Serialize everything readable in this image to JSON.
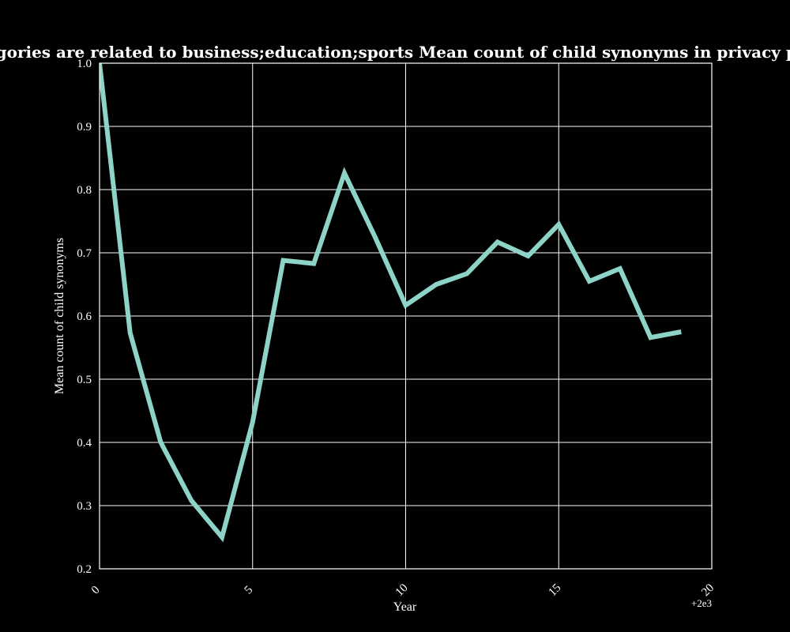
{
  "chart_data": {
    "type": "line",
    "title": "en categories are related to business;education;sports Mean count of child synonyms in privacy policies by",
    "xlabel": "Year",
    "ylabel": "Mean count of child synonyms",
    "x_offset_label": "+2e3",
    "xlim": [
      0,
      20
    ],
    "ylim": [
      0.2,
      1.0
    ],
    "x_ticks": [
      "0",
      "5",
      "10",
      "15",
      "20"
    ],
    "y_ticks": [
      "0.2",
      "0.3",
      "0.4",
      "0.5",
      "0.6",
      "0.7",
      "0.8",
      "0.9",
      "1.0"
    ],
    "grid": true,
    "line_color": "#8dd3c7",
    "background_color": "#000000",
    "x": [
      0,
      1,
      2,
      3,
      4,
      5,
      6,
      7,
      8,
      9,
      10,
      11,
      12,
      13,
      14,
      15,
      16,
      17,
      18,
      19
    ],
    "series": [
      {
        "values": [
          1.0,
          0.573,
          0.4,
          0.308,
          0.25,
          0.432,
          0.688,
          0.683,
          0.826,
          0.725,
          0.617,
          0.65,
          0.667,
          0.717,
          0.695,
          0.745,
          0.655,
          0.675,
          0.566,
          0.575
        ]
      }
    ]
  }
}
